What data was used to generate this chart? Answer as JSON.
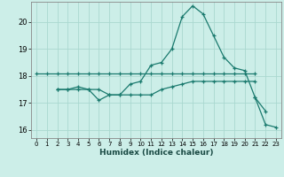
{
  "xlabel": "Humidex (Indice chaleur)",
  "bg_color": "#cceee8",
  "grid_color": "#aad8d0",
  "line_color": "#1a7a6e",
  "xlim": [
    -0.5,
    23.5
  ],
  "ylim": [
    15.7,
    20.75
  ],
  "yticks": [
    16,
    17,
    18,
    19,
    20
  ],
  "xticks": [
    0,
    1,
    2,
    3,
    4,
    5,
    6,
    7,
    8,
    9,
    10,
    11,
    12,
    13,
    14,
    15,
    16,
    17,
    18,
    19,
    20,
    21,
    22,
    23
  ],
  "series": [
    {
      "x": [
        0,
        1,
        2,
        3,
        4,
        5,
        6,
        7,
        8,
        9,
        10,
        11,
        12,
        13,
        14,
        15,
        16,
        17,
        18,
        19,
        20,
        21
      ],
      "y": [
        18.1,
        18.1,
        18.1,
        18.1,
        18.1,
        18.1,
        18.1,
        18.1,
        18.1,
        18.1,
        18.1,
        18.1,
        18.1,
        18.1,
        18.1,
        18.1,
        18.1,
        18.1,
        18.1,
        18.1,
        18.1,
        18.1
      ]
    },
    {
      "x": [
        2,
        3,
        4,
        5,
        6,
        7,
        8,
        9,
        10,
        11,
        12,
        13,
        14,
        15,
        16,
        17,
        18,
        19,
        20,
        21
      ],
      "y": [
        17.5,
        17.5,
        17.5,
        17.5,
        17.5,
        17.3,
        17.3,
        17.3,
        17.3,
        17.3,
        17.5,
        17.6,
        17.7,
        17.8,
        17.8,
        17.8,
        17.8,
        17.8,
        17.8,
        17.8
      ]
    },
    {
      "x": [
        2,
        3,
        4,
        5,
        6,
        7,
        8,
        9,
        10,
        11,
        12,
        13,
        14,
        15,
        16,
        17,
        18,
        19,
        20,
        21,
        22
      ],
      "y": [
        17.5,
        17.5,
        17.6,
        17.5,
        17.1,
        17.3,
        17.3,
        17.7,
        17.8,
        18.4,
        18.5,
        19.0,
        20.2,
        20.6,
        20.3,
        19.5,
        18.7,
        18.3,
        18.2,
        17.2,
        16.7
      ]
    },
    {
      "x": [
        21,
        22,
        23
      ],
      "y": [
        17.2,
        16.2,
        16.1
      ]
    }
  ]
}
